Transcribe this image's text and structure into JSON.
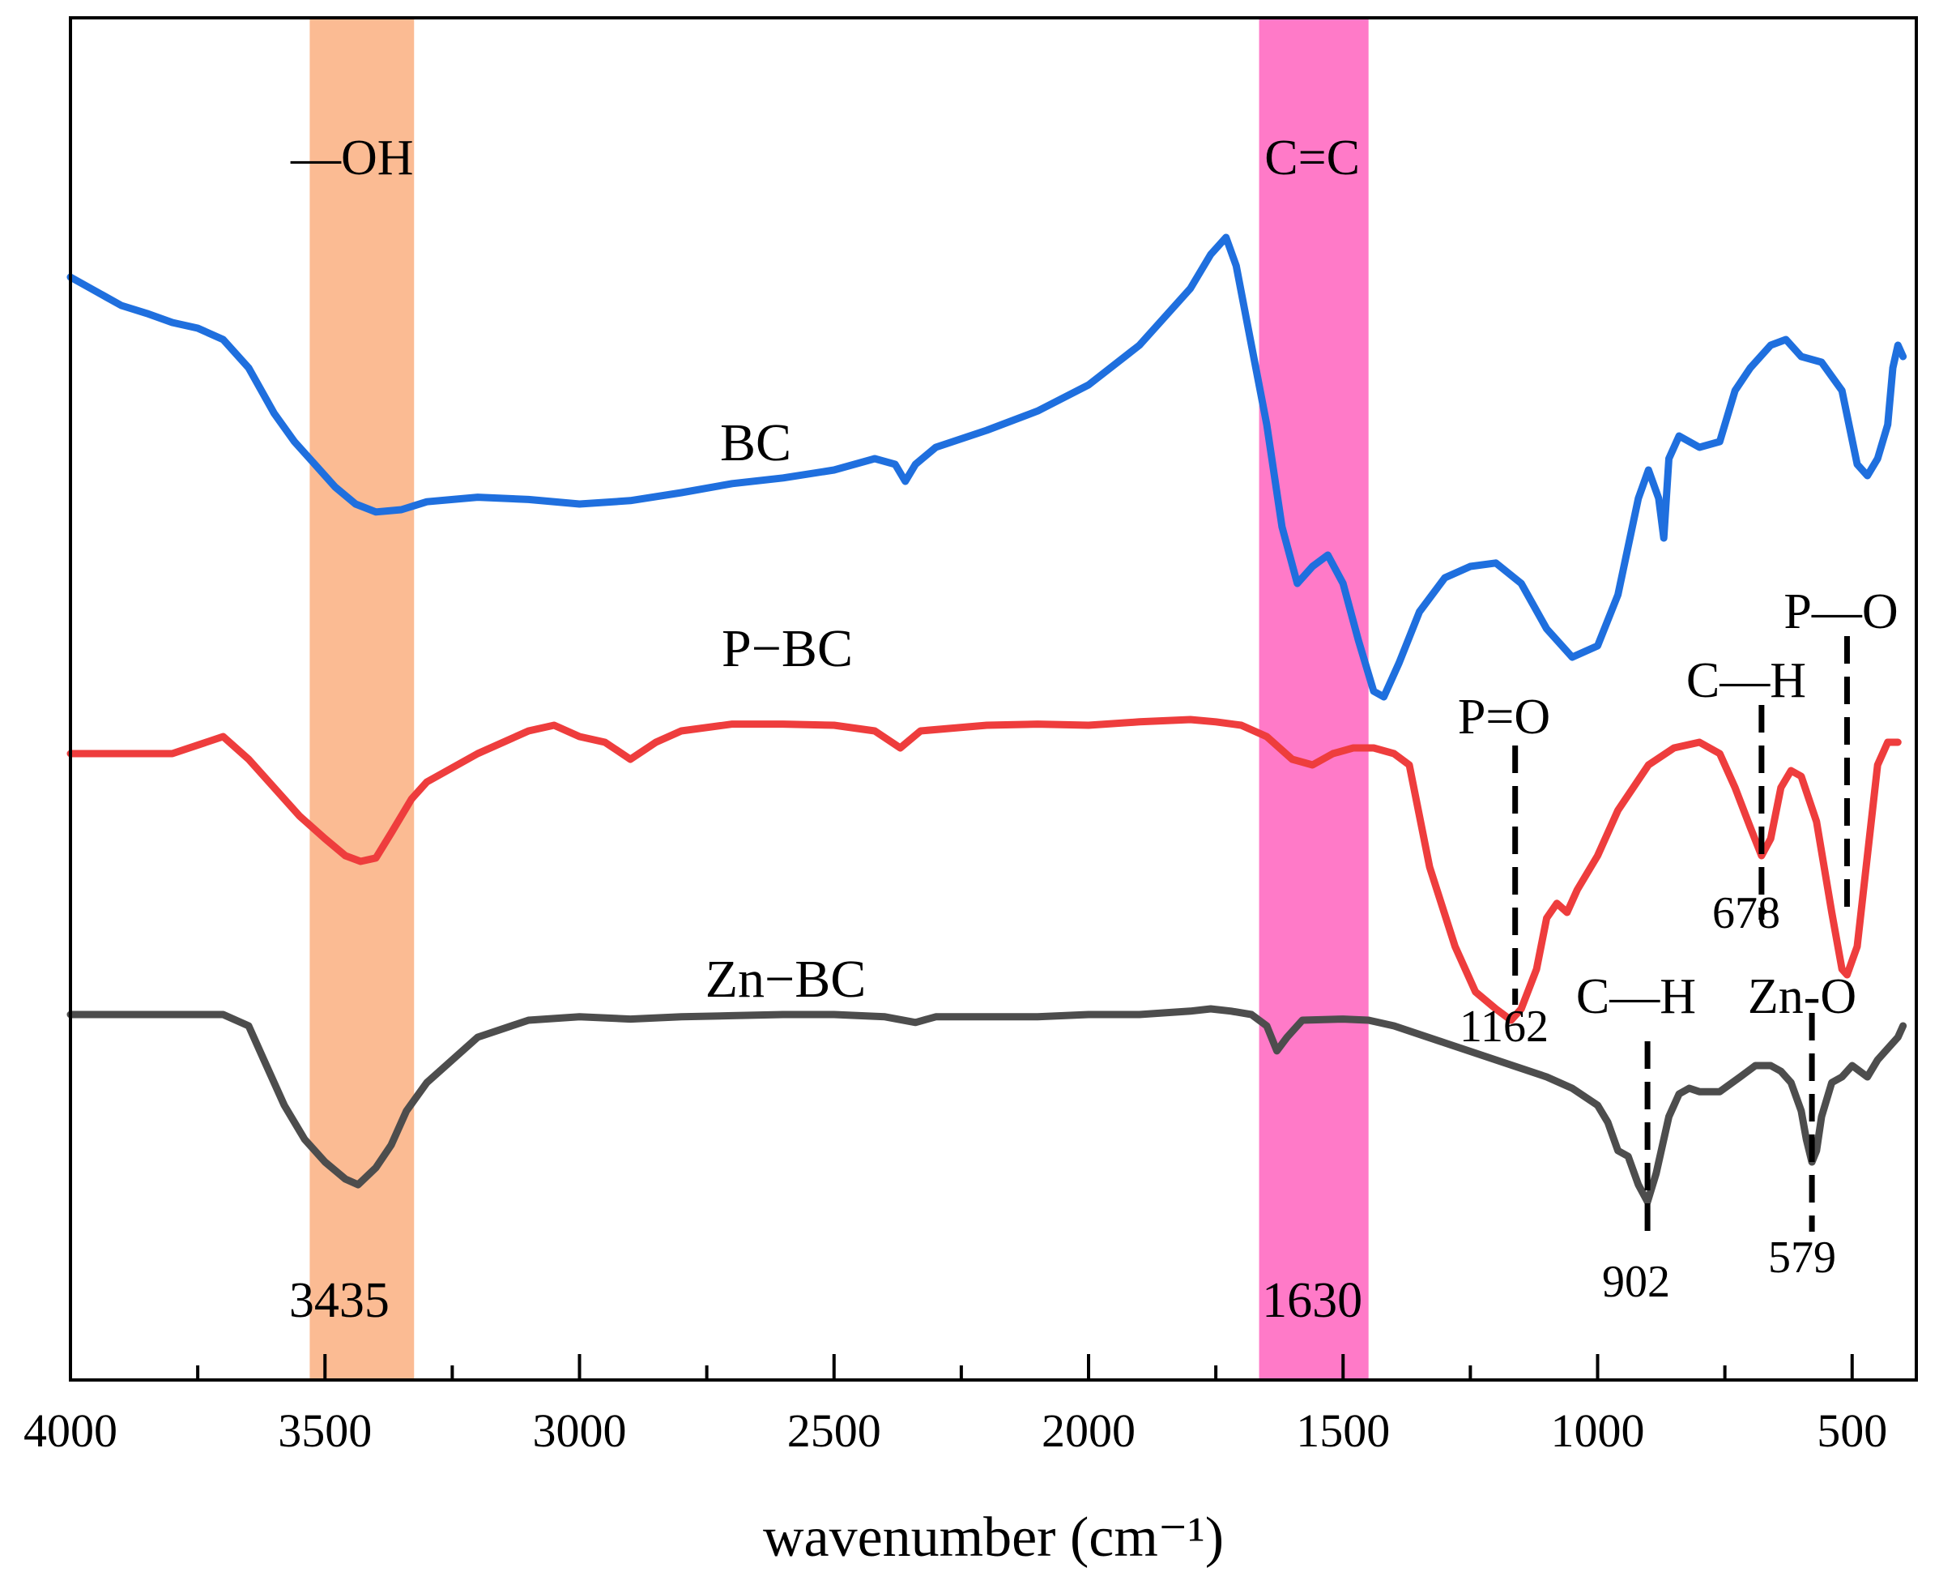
{
  "chart_data": {
    "type": "line",
    "title": "",
    "xlabel": "wavenumber (cm⁻¹)",
    "ylabel": "",
    "xlim": [
      4000,
      400
    ],
    "ylim": [
      0,
      100
    ],
    "x_ticks": [
      4000,
      3500,
      3000,
      2500,
      2000,
      1500,
      1000,
      500
    ],
    "x_tick_labels": [
      "4000",
      "3500",
      "3000",
      "2500",
      "2000",
      "1500",
      "1000",
      "500"
    ],
    "grid": false,
    "legend": "none",
    "bands": [
      {
        "label": "—OH",
        "center_label": "3435",
        "from": 3530,
        "to": 3325,
        "color": "#fbbb93"
      },
      {
        "label": "C=C",
        "center_label": "1630",
        "from": 1665,
        "to": 1450,
        "color": "#ff7ac8"
      }
    ],
    "series": [
      {
        "name": "BC",
        "label": "BC",
        "color": "#1f6fde",
        "points": [
          [
            4000,
            92
          ],
          [
            3960,
            91
          ],
          [
            3900,
            89.5
          ],
          [
            3850,
            88.8
          ],
          [
            3800,
            88
          ],
          [
            3750,
            87.5
          ],
          [
            3700,
            86.5
          ],
          [
            3650,
            84
          ],
          [
            3600,
            80
          ],
          [
            3560,
            77.5
          ],
          [
            3520,
            75.5
          ],
          [
            3480,
            73.5
          ],
          [
            3440,
            72
          ],
          [
            3400,
            71.3
          ],
          [
            3350,
            71.5
          ],
          [
            3300,
            72.2
          ],
          [
            3200,
            72.6
          ],
          [
            3100,
            72.4
          ],
          [
            3000,
            72.0
          ],
          [
            2900,
            72.3
          ],
          [
            2800,
            73
          ],
          [
            2700,
            73.8
          ],
          [
            2600,
            74.3
          ],
          [
            2500,
            75
          ],
          [
            2420,
            76
          ],
          [
            2380,
            75.5
          ],
          [
            2360,
            74
          ],
          [
            2340,
            75.5
          ],
          [
            2300,
            77
          ],
          [
            2200,
            78.5
          ],
          [
            2100,
            80.2
          ],
          [
            2000,
            82.5
          ],
          [
            1900,
            86
          ],
          [
            1800,
            91
          ],
          [
            1760,
            94
          ],
          [
            1730,
            95.5
          ],
          [
            1710,
            93
          ],
          [
            1680,
            86
          ],
          [
            1650,
            79
          ],
          [
            1620,
            70
          ],
          [
            1590,
            65
          ],
          [
            1560,
            66.5
          ],
          [
            1530,
            67.5
          ],
          [
            1500,
            65
          ],
          [
            1470,
            60
          ],
          [
            1440,
            55.5
          ],
          [
            1420,
            55
          ],
          [
            1390,
            58
          ],
          [
            1350,
            62.5
          ],
          [
            1300,
            65.5
          ],
          [
            1250,
            66.5
          ],
          [
            1200,
            66.8
          ],
          [
            1150,
            65
          ],
          [
            1100,
            61
          ],
          [
            1050,
            58.5
          ],
          [
            1000,
            59.5
          ],
          [
            960,
            64
          ],
          [
            920,
            72.5
          ],
          [
            900,
            75
          ],
          [
            880,
            72.5
          ],
          [
            870,
            69
          ],
          [
            860,
            76
          ],
          [
            840,
            78
          ],
          [
            800,
            77
          ],
          [
            760,
            77.5
          ],
          [
            730,
            82
          ],
          [
            700,
            84
          ],
          [
            660,
            86
          ],
          [
            630,
            86.5
          ],
          [
            600,
            85
          ],
          [
            560,
            84.5
          ],
          [
            520,
            82
          ],
          [
            490,
            75.5
          ],
          [
            470,
            74.5
          ],
          [
            450,
            76
          ],
          [
            430,
            79
          ],
          [
            420,
            84
          ],
          [
            410,
            86
          ],
          [
            400,
            85
          ]
        ]
      },
      {
        "name": "P-BC",
        "label": "P−BC",
        "color": "#ee3d3d",
        "points": [
          [
            4000,
            50
          ],
          [
            3900,
            50
          ],
          [
            3800,
            50
          ],
          [
            3700,
            51.5
          ],
          [
            3650,
            49.5
          ],
          [
            3600,
            47
          ],
          [
            3550,
            44.5
          ],
          [
            3500,
            42.5
          ],
          [
            3460,
            41
          ],
          [
            3430,
            40.5
          ],
          [
            3400,
            40.8
          ],
          [
            3370,
            43
          ],
          [
            3330,
            46
          ],
          [
            3300,
            47.5
          ],
          [
            3200,
            50
          ],
          [
            3100,
            52
          ],
          [
            3050,
            52.5
          ],
          [
            3000,
            51.5
          ],
          [
            2950,
            51
          ],
          [
            2900,
            49.5
          ],
          [
            2850,
            51
          ],
          [
            2800,
            52
          ],
          [
            2700,
            52.6
          ],
          [
            2600,
            52.6
          ],
          [
            2500,
            52.5
          ],
          [
            2420,
            52
          ],
          [
            2370,
            50.5
          ],
          [
            2330,
            52
          ],
          [
            2200,
            52.5
          ],
          [
            2100,
            52.6
          ],
          [
            2000,
            52.5
          ],
          [
            1900,
            52.8
          ],
          [
            1800,
            53
          ],
          [
            1750,
            52.8
          ],
          [
            1700,
            52.5
          ],
          [
            1650,
            51.5
          ],
          [
            1600,
            49.5
          ],
          [
            1560,
            49
          ],
          [
            1520,
            50
          ],
          [
            1480,
            50.5
          ],
          [
            1440,
            50.5
          ],
          [
            1400,
            50
          ],
          [
            1370,
            49
          ],
          [
            1330,
            40
          ],
          [
            1280,
            33
          ],
          [
            1240,
            29
          ],
          [
            1200,
            27.5
          ],
          [
            1170,
            26.5
          ],
          [
            1150,
            27.5
          ],
          [
            1120,
            31
          ],
          [
            1100,
            35.5
          ],
          [
            1080,
            36.8
          ],
          [
            1060,
            36
          ],
          [
            1040,
            38
          ],
          [
            1000,
            41
          ],
          [
            960,
            45
          ],
          [
            900,
            49
          ],
          [
            850,
            50.5
          ],
          [
            800,
            51
          ],
          [
            760,
            50
          ],
          [
            730,
            47
          ],
          [
            700,
            43.5
          ],
          [
            678,
            41
          ],
          [
            660,
            42.5
          ],
          [
            640,
            47
          ],
          [
            620,
            48.5
          ],
          [
            600,
            48
          ],
          [
            570,
            44
          ],
          [
            540,
            36
          ],
          [
            520,
            31
          ],
          [
            510,
            30.5
          ],
          [
            490,
            33
          ],
          [
            470,
            41
          ],
          [
            450,
            49
          ],
          [
            430,
            51
          ],
          [
            410,
            51
          ]
        ]
      },
      {
        "name": "Zn-BC",
        "label": "Zn−BC",
        "color": "#4d4d4d",
        "points": [
          [
            4000,
            27
          ],
          [
            3900,
            27
          ],
          [
            3800,
            27
          ],
          [
            3700,
            27
          ],
          [
            3650,
            26
          ],
          [
            3620,
            23
          ],
          [
            3580,
            19
          ],
          [
            3540,
            16
          ],
          [
            3500,
            14
          ],
          [
            3460,
            12.5
          ],
          [
            3435,
            12
          ],
          [
            3400,
            13.5
          ],
          [
            3370,
            15.5
          ],
          [
            3340,
            18.5
          ],
          [
            3300,
            21
          ],
          [
            3250,
            23
          ],
          [
            3200,
            25
          ],
          [
            3100,
            26.5
          ],
          [
            3000,
            26.8
          ],
          [
            2900,
            26.6
          ],
          [
            2800,
            26.8
          ],
          [
            2700,
            26.9
          ],
          [
            2600,
            27
          ],
          [
            2500,
            27
          ],
          [
            2400,
            26.8
          ],
          [
            2340,
            26.3
          ],
          [
            2300,
            26.8
          ],
          [
            2200,
            26.8
          ],
          [
            2100,
            26.8
          ],
          [
            2000,
            27
          ],
          [
            1900,
            27
          ],
          [
            1800,
            27.3
          ],
          [
            1760,
            27.5
          ],
          [
            1720,
            27.3
          ],
          [
            1680,
            27
          ],
          [
            1650,
            26
          ],
          [
            1630,
            23.8
          ],
          [
            1610,
            25
          ],
          [
            1580,
            26.5
          ],
          [
            1500,
            26.6
          ],
          [
            1450,
            26.5
          ],
          [
            1400,
            26
          ],
          [
            1300,
            24.5
          ],
          [
            1200,
            23
          ],
          [
            1100,
            21.5
          ],
          [
            1050,
            20.5
          ],
          [
            1000,
            19
          ],
          [
            980,
            17.5
          ],
          [
            960,
            15
          ],
          [
            940,
            14.5
          ],
          [
            920,
            12
          ],
          [
            902,
            10.5
          ],
          [
            885,
            13
          ],
          [
            860,
            18
          ],
          [
            840,
            20
          ],
          [
            820,
            20.5
          ],
          [
            800,
            20.2
          ],
          [
            760,
            20.2
          ],
          [
            720,
            21.5
          ],
          [
            690,
            22.5
          ],
          [
            660,
            22.5
          ],
          [
            640,
            22
          ],
          [
            620,
            21
          ],
          [
            600,
            18.5
          ],
          [
            590,
            16
          ],
          [
            579,
            14
          ],
          [
            570,
            15
          ],
          [
            560,
            18
          ],
          [
            540,
            21
          ],
          [
            520,
            21.5
          ],
          [
            500,
            22.5
          ],
          [
            470,
            21.5
          ],
          [
            450,
            23
          ],
          [
            430,
            24
          ],
          [
            410,
            25
          ],
          [
            400,
            26
          ]
        ]
      }
    ],
    "peaks": [
      {
        "series": "Zn-BC",
        "group": "C—H",
        "value": "902",
        "x": 902,
        "y": 10.5
      },
      {
        "series": "Zn-BC",
        "group": "Zn-O",
        "value": "579",
        "x": 579,
        "y": 14
      },
      {
        "series": "P-BC",
        "group": "P=O",
        "value": "1162",
        "x": 1162,
        "y": 26.5
      },
      {
        "series": "P-BC",
        "group": "C—H",
        "value": "678",
        "x": 678,
        "y": 41
      },
      {
        "series": "P-BC",
        "group": "P—O",
        "value": "",
        "x": 510,
        "y": 30.5
      }
    ]
  }
}
